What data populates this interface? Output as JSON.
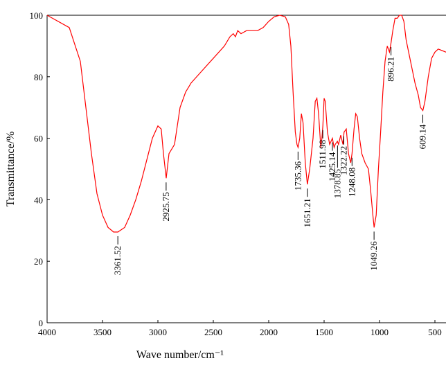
{
  "chart_data": {
    "type": "line",
    "x_label": "Wave number/cm⁻¹",
    "y_label": "Transmittance/%",
    "xlim": [
      4000,
      400
    ],
    "ylim": [
      0,
      100
    ],
    "xticks": [
      4000,
      3500,
      3000,
      2500,
      2000,
      1500,
      1000,
      500
    ],
    "yticks": [
      0,
      20,
      40,
      60,
      80,
      100
    ],
    "series": [
      {
        "color": "#ff0000",
        "x": [
          4000,
          3800,
          3700,
          3650,
          3600,
          3550,
          3500,
          3450,
          3400,
          3361,
          3300,
          3250,
          3200,
          3150,
          3100,
          3050,
          3000,
          2970,
          2950,
          2925,
          2900,
          2850,
          2800,
          2750,
          2700,
          2600,
          2500,
          2400,
          2350,
          2320,
          2300,
          2280,
          2250,
          2200,
          2150,
          2100,
          2050,
          2000,
          1950,
          1900,
          1850,
          1820,
          1800,
          1780,
          1760,
          1745,
          1735,
          1720,
          1705,
          1690,
          1670,
          1651,
          1630,
          1600,
          1580,
          1565,
          1550,
          1530,
          1520,
          1511,
          1500,
          1490,
          1470,
          1450,
          1425,
          1410,
          1400,
          1380,
          1370,
          1350,
          1330,
          1320,
          1300,
          1280,
          1260,
          1248,
          1230,
          1215,
          1200,
          1180,
          1160,
          1130,
          1100,
          1080,
          1060,
          1049,
          1030,
          1010,
          990,
          970,
          950,
          930,
          910,
          896,
          880,
          860,
          840,
          820,
          800,
          780,
          760,
          720,
          680,
          650,
          630,
          609,
          590,
          560,
          530,
          500,
          470,
          400
        ],
        "values": [
          100,
          96,
          85,
          70,
          55,
          42,
          35,
          31,
          29.5,
          29.5,
          31,
          35,
          40,
          46,
          53,
          60,
          64,
          63,
          55,
          47,
          55,
          58,
          70,
          75,
          78,
          82,
          86,
          90,
          93,
          94,
          93,
          95,
          94,
          95,
          95,
          95,
          96,
          98,
          99.5,
          100,
          99.5,
          97,
          90,
          75,
          62,
          58,
          57,
          60,
          68,
          65,
          52,
          45,
          50,
          60,
          72,
          73,
          68,
          57,
          60,
          64,
          73,
          72,
          62,
          58,
          60,
          57,
          58,
          59,
          58,
          61,
          58,
          62,
          63,
          55,
          52,
          55,
          63,
          68,
          67,
          60,
          55,
          52,
          50,
          43,
          35,
          31,
          35,
          50,
          62,
          75,
          85,
          90,
          88,
          91,
          95,
          99,
          99,
          100,
          100,
          98,
          92,
          85,
          78,
          74,
          70,
          69,
          72,
          80,
          86,
          88,
          89,
          88
        ]
      }
    ],
    "annotations": [
      {
        "x": 3361.52,
        "y": 29.5,
        "label": "3361.52"
      },
      {
        "x": 2925.75,
        "y": 47,
        "label": "2925.75"
      },
      {
        "x": 1735.36,
        "y": 57,
        "label": "1735.36"
      },
      {
        "x": 1651.21,
        "y": 45,
        "label": "1651.21"
      },
      {
        "x": 1511.98,
        "y": 64,
        "label": "1511.98"
      },
      {
        "x": 1425.14,
        "y": 60,
        "label": "1425.14"
      },
      {
        "x": 1378.85,
        "y": 59,
        "label": "1378.85"
      },
      {
        "x": 1322.22,
        "y": 62,
        "label": "1322.22"
      },
      {
        "x": 1248.08,
        "y": 55,
        "label": "1248.08"
      },
      {
        "x": 1049.26,
        "y": 31,
        "label": "1049.26"
      },
      {
        "x": 896.21,
        "y": 91,
        "label": "896.21"
      },
      {
        "x": 609.14,
        "y": 69,
        "label": "609.14"
      }
    ]
  }
}
